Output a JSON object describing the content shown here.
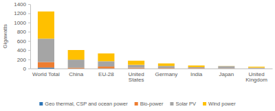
{
  "chart_data": {
    "type": "bar",
    "stacked": true,
    "y_label": "Gigawatts",
    "categories": [
      "World Total",
      "China",
      "EU-28",
      "United States",
      "Germany",
      "India",
      "Japan",
      "United Kingdom"
    ],
    "series": [
      {
        "name": "Geo thermal, CSP and ocean power",
        "color": "#2e75b6",
        "values": [
          20,
          2,
          3,
          5,
          1,
          1,
          1,
          1
        ]
      },
      {
        "name": "Bio-power",
        "color": "#ed7d31",
        "values": [
          120,
          15,
          40,
          15,
          10,
          10,
          5,
          5
        ]
      },
      {
        "name": "Solar PV",
        "color": "#a5a5a5",
        "values": [
          510,
          175,
          115,
          60,
          45,
          20,
          45,
          13
        ]
      },
      {
        "name": "Wind power",
        "color": "#ffc000",
        "values": [
          590,
          210,
          170,
          90,
          55,
          35,
          3,
          20
        ]
      }
    ],
    "ylim": [
      0,
      1400
    ],
    "yticks": [
      0,
      200,
      400,
      600,
      800,
      1000,
      1200,
      1400
    ],
    "grid": false,
    "legend": "bottom"
  }
}
